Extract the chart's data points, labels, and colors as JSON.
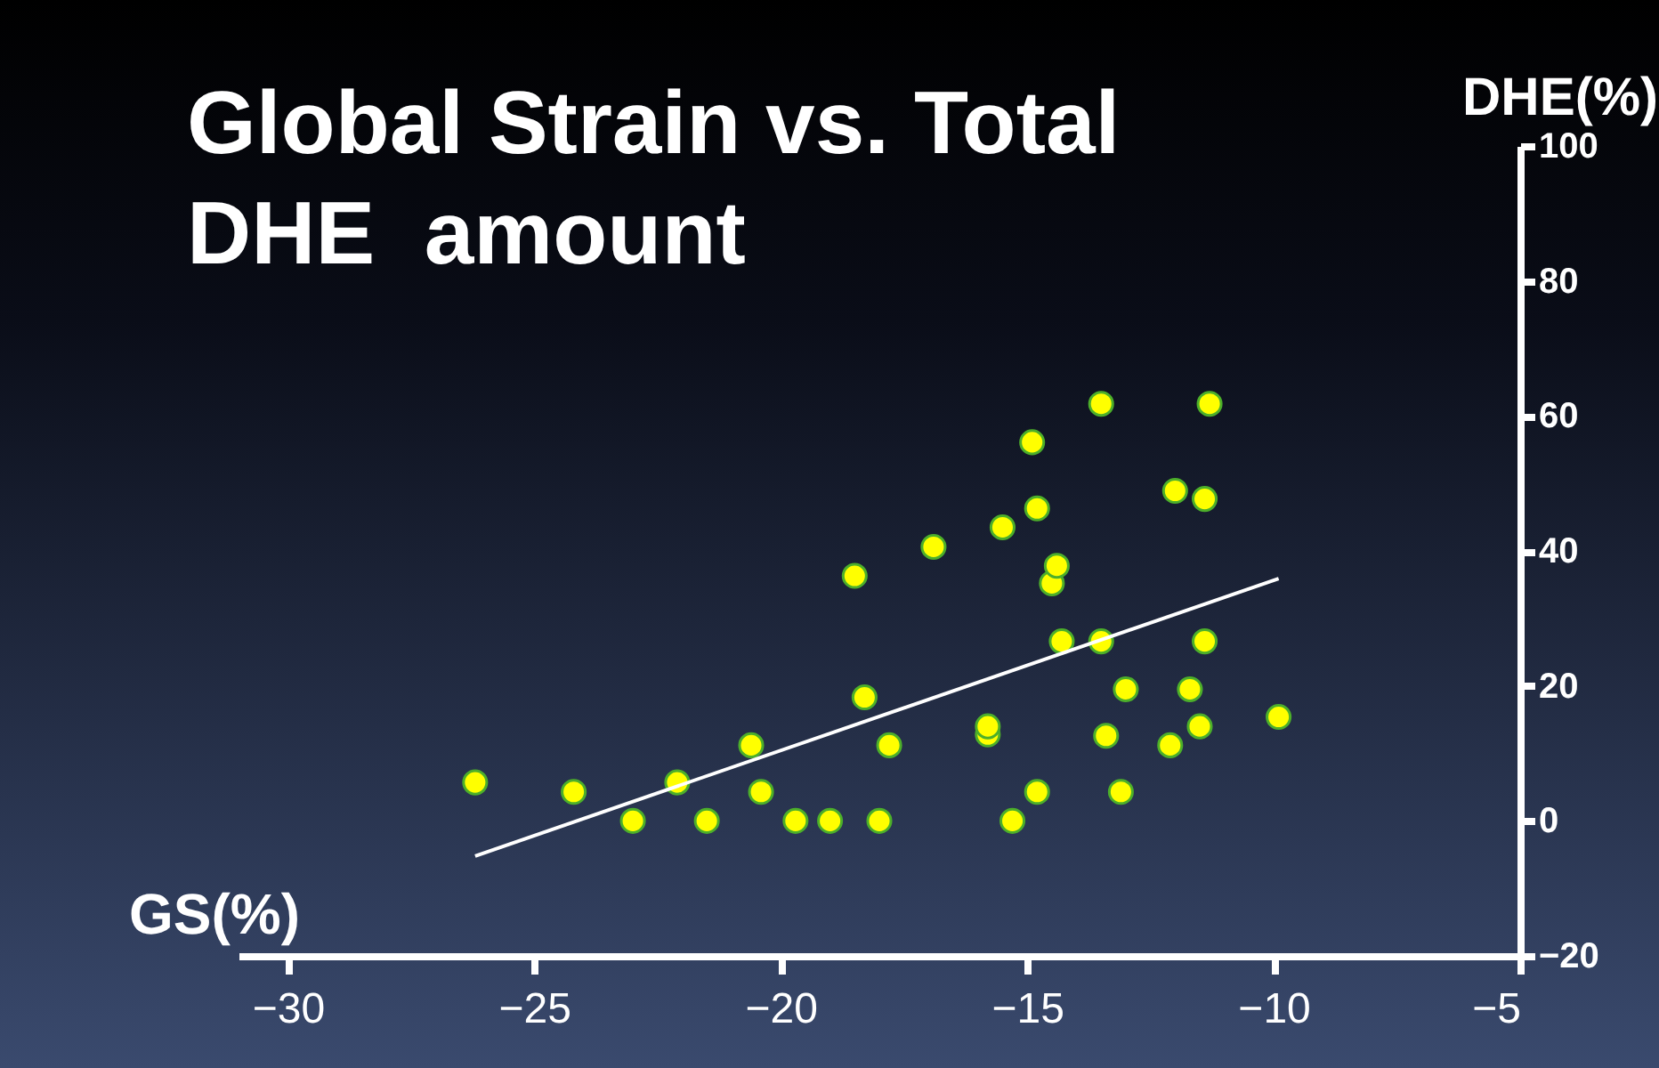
{
  "chart_data": {
    "type": "scatter",
    "title": "Global Strain vs. Total DHE  amount",
    "xlabel": "GS(%)",
    "ylabel": "DHE(%)",
    "xlim": [
      -31,
      -5
    ],
    "xticks": [
      -30,
      -25,
      -20,
      -15,
      -10,
      -5
    ],
    "ylim": [
      -20,
      100
    ],
    "yticks": [
      -20,
      0,
      20,
      40,
      60,
      80,
      100
    ],
    "grid": false,
    "series": [
      {
        "marker": "circle",
        "color": "#ffff00",
        "x": [
          -26.2,
          -24.2,
          -23.0,
          -22.1,
          -21.5,
          -20.6,
          -20.4,
          -19.7,
          -19.0,
          -18.5,
          -18.3,
          -18.0,
          -17.8,
          -16.9,
          -15.8,
          -15.8,
          -15.5,
          -15.3,
          -14.9,
          -14.8,
          -14.8,
          -14.5,
          -14.4,
          -14.3,
          -13.5,
          -13.5,
          -13.4,
          -13.1,
          -13.0,
          -12.1,
          -12.0,
          -11.7,
          -11.5,
          -11.4,
          -11.4,
          -11.3,
          -9.9
        ],
        "values": [
          5.7,
          4.3,
          0,
          5.7,
          0,
          11.2,
          4.3,
          0,
          0,
          36.3,
          18.3,
          0,
          11.2,
          40.6,
          12.8,
          14.0,
          43.5,
          0,
          56.1,
          46.3,
          4.3,
          35.2,
          37.8,
          26.6,
          61.8,
          26.6,
          12.6,
          4.3,
          19.5,
          11.2,
          48.9,
          19.5,
          14.0,
          26.6,
          47.7,
          61.8,
          15.4
        ]
      },
      {
        "type": "line",
        "marker": "none",
        "color": "#ffffff",
        "x": [
          -26.2,
          -9.9
        ],
        "values": [
          -5.2,
          35.9
        ]
      }
    ]
  }
}
